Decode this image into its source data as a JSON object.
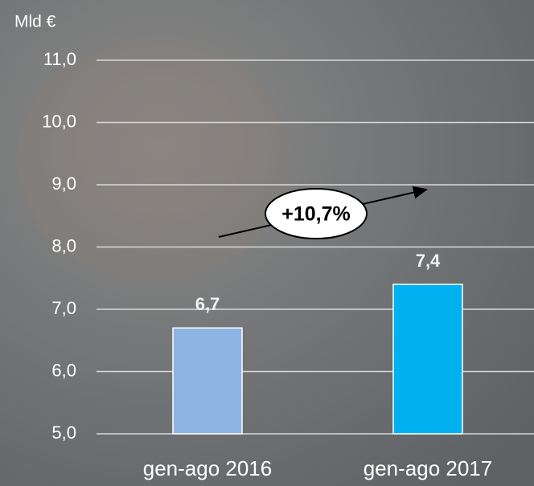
{
  "chart_data": {
    "type": "bar",
    "y_unit": "Mld €",
    "categories": [
      "gen-ago 2016",
      "gen-ago 2017"
    ],
    "values": [
      6.7,
      7.4
    ],
    "value_labels": [
      "6,7",
      "7,4"
    ],
    "colors": [
      "#8eb4e3",
      "#00b0f0"
    ],
    "ylim": [
      5,
      11
    ],
    "yticks": [
      {
        "value": 5,
        "label": "5,0"
      },
      {
        "value": 6,
        "label": "6,0"
      },
      {
        "value": 7,
        "label": "7,0"
      },
      {
        "value": 8,
        "label": "8,0"
      },
      {
        "value": 9,
        "label": "9,0"
      },
      {
        "value": 10,
        "label": "10,0"
      },
      {
        "value": 11,
        "label": "11,0"
      }
    ],
    "grid": true,
    "annotation": "+10,7%"
  }
}
